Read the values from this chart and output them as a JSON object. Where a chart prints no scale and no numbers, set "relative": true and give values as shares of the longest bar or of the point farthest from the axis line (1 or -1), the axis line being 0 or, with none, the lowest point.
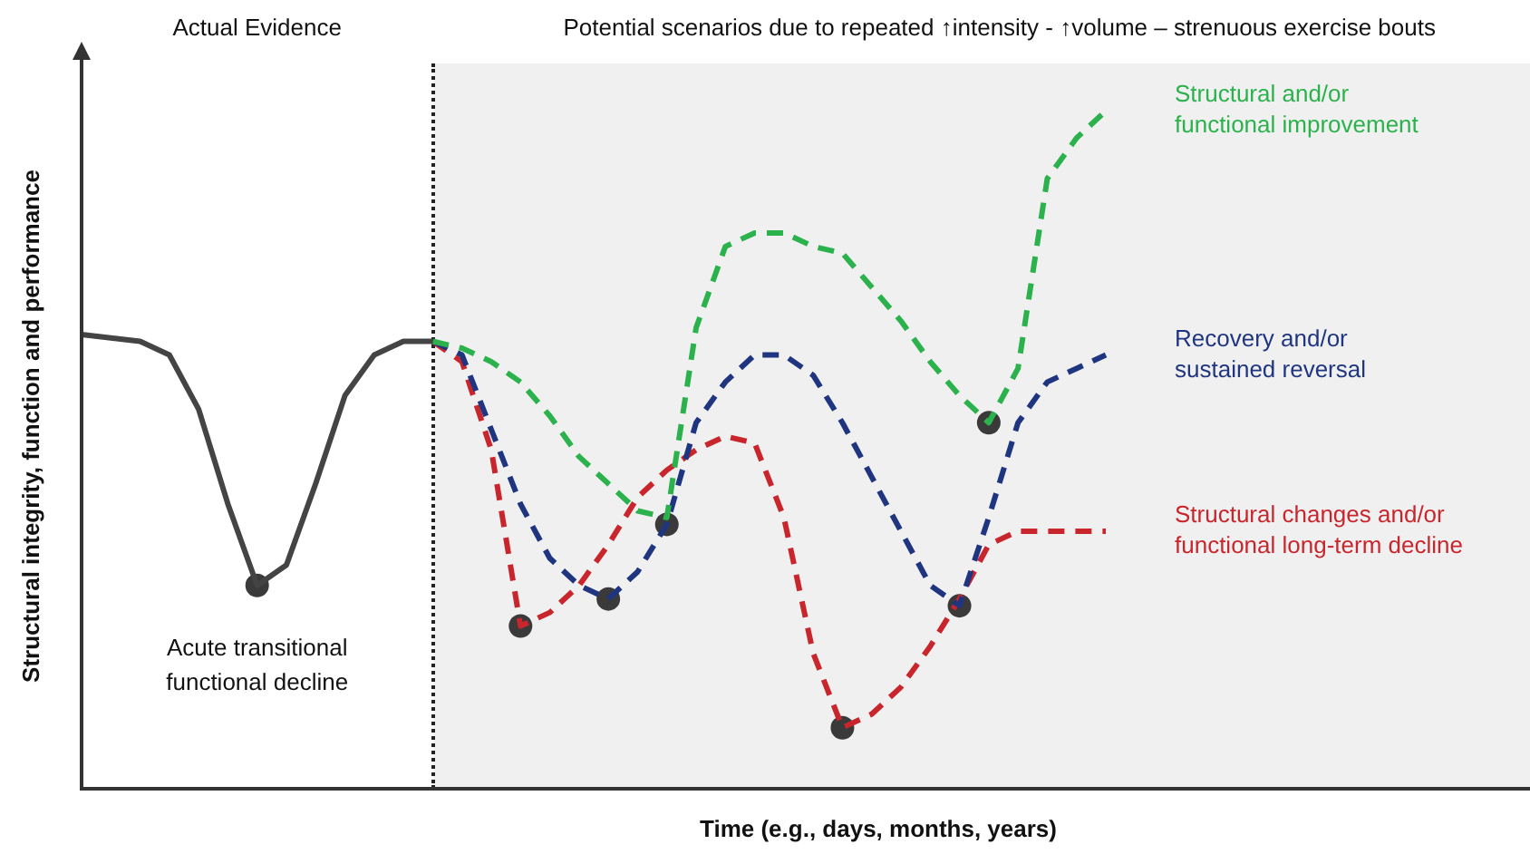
{
  "chart_data": {
    "type": "line",
    "relative": true,
    "xlabel": "Time (e.g., days, months, years)",
    "ylabel": "Structural integrity, function and performance",
    "legend": false,
    "annotations": [
      "Actual Evidence",
      "Potential scenarios due to repeated ↑intensity - ↑volume – strenuous exercise bouts",
      "Acute transitional functional decline"
    ],
    "categories": [
      null,
      null,
      null,
      null,
      null,
      null,
      null,
      null,
      null,
      null,
      null,
      null,
      null,
      null,
      null,
      null,
      null,
      null,
      null,
      null,
      null,
      null,
      null,
      null,
      null,
      null,
      null,
      null,
      null,
      null,
      null,
      null,
      null,
      null,
      null,
      null
    ],
    "series": [
      {
        "color": "#444444",
        "line_style": "solid",
        "marker": "none",
        "values": [
          0.67,
          0.665,
          0.66,
          0.64,
          0.56,
          0.42,
          0.3,
          0.33,
          0.45,
          0.58,
          0.64,
          0.66,
          0.66,
          null,
          null,
          null,
          null,
          null,
          null,
          null,
          null,
          null,
          null,
          null,
          null,
          null,
          null,
          null,
          null,
          null,
          null,
          null,
          null,
          null,
          null,
          null
        ]
      },
      {
        "name": "Structural and/or functional improvement",
        "color": "#2bb24c",
        "line_style": "dashed",
        "marker": "none",
        "values": [
          null,
          null,
          null,
          null,
          null,
          null,
          null,
          null,
          null,
          null,
          null,
          null,
          0.66,
          0.65,
          0.63,
          0.6,
          0.55,
          0.49,
          0.45,
          0.41,
          0.4,
          0.68,
          0.8,
          0.82,
          0.82,
          0.8,
          0.79,
          0.74,
          0.69,
          0.63,
          0.58,
          0.54,
          0.62,
          0.9,
          0.96,
          1.0
        ]
      },
      {
        "name": "Recovery and/or sustained reversal",
        "color": "#1f3580",
        "line_style": "dashed",
        "marker": "none",
        "values": [
          null,
          null,
          null,
          null,
          null,
          null,
          null,
          null,
          null,
          null,
          null,
          null,
          0.66,
          0.64,
          0.53,
          0.42,
          0.34,
          0.3,
          0.28,
          0.32,
          0.39,
          0.54,
          0.6,
          0.64,
          0.64,
          0.61,
          0.54,
          0.46,
          0.38,
          0.3,
          0.27,
          0.4,
          0.54,
          0.6,
          0.62,
          0.64
        ]
      },
      {
        "name": "Structural changes and/or functional long-term decline",
        "color": "#c8262c",
        "line_style": "dashed",
        "marker": "none",
        "values": [
          null,
          null,
          null,
          null,
          null,
          null,
          null,
          null,
          null,
          null,
          null,
          null,
          0.66,
          0.63,
          0.5,
          0.24,
          0.26,
          0.3,
          0.36,
          0.43,
          0.47,
          0.5,
          0.52,
          0.51,
          0.4,
          0.2,
          0.09,
          0.11,
          0.15,
          0.21,
          0.28,
          0.36,
          0.38,
          0.38,
          0.38,
          0.38
        ]
      },
      {
        "color": "#3a3a3a",
        "line_style": "solid",
        "marker": "circle",
        "values": [
          null,
          null,
          null,
          null,
          null,
          null,
          0.3,
          null,
          null,
          null,
          null,
          null,
          null,
          null,
          null,
          null,
          null,
          null,
          null,
          null,
          null,
          null,
          null,
          null,
          null,
          null,
          null,
          null,
          null,
          null,
          null,
          null,
          null,
          null,
          null,
          null
        ]
      },
      {
        "color": "#3a3a3a",
        "line_style": "solid",
        "marker": "circle",
        "values": [
          null,
          null,
          null,
          null,
          null,
          null,
          null,
          null,
          null,
          null,
          null,
          null,
          null,
          null,
          null,
          0.24,
          null,
          null,
          null,
          null,
          null,
          null,
          null,
          null,
          null,
          null,
          null,
          null,
          null,
          null,
          null,
          null,
          null,
          null,
          null,
          null
        ]
      },
      {
        "color": "#3a3a3a",
        "line_style": "solid",
        "marker": "circle",
        "values": [
          null,
          null,
          null,
          null,
          null,
          null,
          null,
          null,
          null,
          null,
          null,
          null,
          null,
          null,
          null,
          null,
          null,
          null,
          0.28,
          null,
          null,
          null,
          null,
          null,
          null,
          null,
          null,
          null,
          null,
          null,
          null,
          null,
          null,
          null,
          null,
          null
        ]
      },
      {
        "color": "#3a3a3a",
        "line_style": "solid",
        "marker": "circle",
        "values": [
          null,
          null,
          null,
          null,
          null,
          null,
          null,
          null,
          null,
          null,
          null,
          null,
          null,
          null,
          null,
          null,
          null,
          null,
          null,
          null,
          0.39,
          null,
          null,
          null,
          null,
          null,
          null,
          null,
          null,
          null,
          null,
          null,
          null,
          null,
          null,
          null
        ]
      },
      {
        "color": "#3a3a3a",
        "line_style": "solid",
        "marker": "circle",
        "values": [
          null,
          null,
          null,
          null,
          null,
          null,
          null,
          null,
          null,
          null,
          null,
          null,
          null,
          null,
          null,
          null,
          null,
          null,
          null,
          null,
          null,
          null,
          null,
          null,
          null,
          null,
          0.09,
          null,
          null,
          null,
          null,
          null,
          null,
          null,
          null,
          null
        ]
      },
      {
        "color": "#3a3a3a",
        "line_style": "solid",
        "marker": "circle",
        "values": [
          null,
          null,
          null,
          null,
          null,
          null,
          null,
          null,
          null,
          null,
          null,
          null,
          null,
          null,
          null,
          null,
          null,
          null,
          null,
          null,
          null,
          null,
          null,
          null,
          null,
          null,
          null,
          null,
          null,
          null,
          0.27,
          null,
          null,
          null,
          null,
          null
        ]
      },
      {
        "color": "#3a3a3a",
        "line_style": "solid",
        "marker": "circle",
        "values": [
          null,
          null,
          null,
          null,
          null,
          null,
          null,
          null,
          null,
          null,
          null,
          null,
          null,
          null,
          null,
          null,
          null,
          null,
          null,
          null,
          null,
          null,
          null,
          null,
          null,
          null,
          null,
          null,
          null,
          null,
          null,
          0.54,
          null,
          null,
          null,
          null
        ]
      }
    ]
  }
}
